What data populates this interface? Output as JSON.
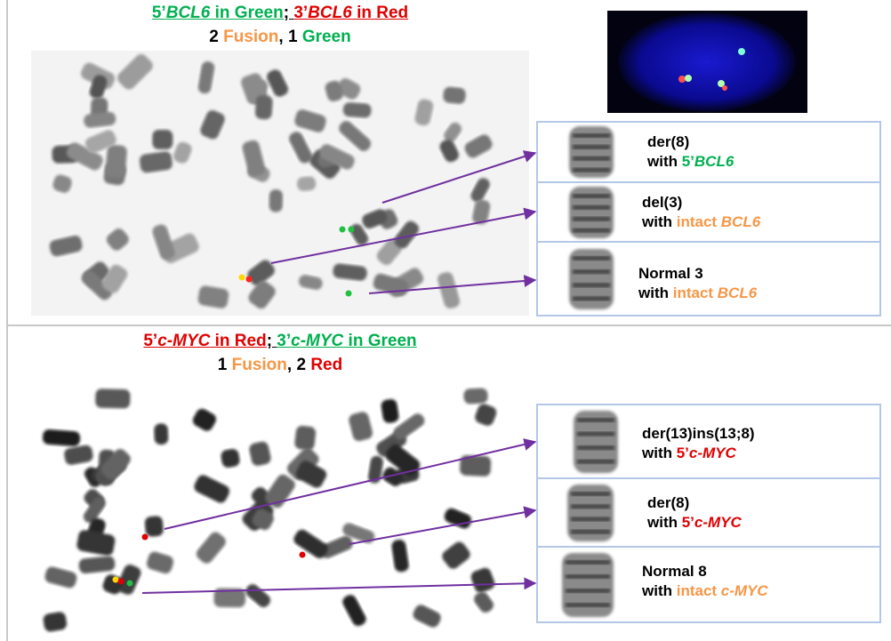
{
  "top": {
    "title": [
      "5’",
      "BCL6",
      " in Green",
      "; ",
      "3’",
      "BCL6",
      " in Red"
    ],
    "subtitle": [
      "2 ",
      "Fusion",
      ", 1 ",
      "Green"
    ],
    "boxes": [
      {
        "line1": "der(8)",
        "line2": [
          "with ",
          "5’",
          "BCL6"
        ]
      },
      {
        "line1": "del(3)",
        "line2": [
          "with ",
          "intact ",
          "BCL6"
        ]
      },
      {
        "line1": "Normal 3",
        "line2": [
          "with ",
          "intact ",
          "BCL6"
        ]
      }
    ]
  },
  "bottom": {
    "title": [
      "5’",
      "c-MYC",
      " in Red",
      "; ",
      "3’",
      "c-MYC",
      " in Green"
    ],
    "subtitle": [
      "1 ",
      "Fusion",
      ", 2 ",
      "Red"
    ],
    "boxes": [
      {
        "line1": "der(13)ins(13;8)",
        "line2": [
          "with ",
          "5’",
          "c-MYC"
        ]
      },
      {
        "line1": "der(8)",
        "line2": [
          "with ",
          "5’",
          "c-MYC"
        ]
      },
      {
        "line1": "Normal 8",
        "line2": [
          "with ",
          "intact ",
          "c-MYC"
        ]
      }
    ]
  }
}
